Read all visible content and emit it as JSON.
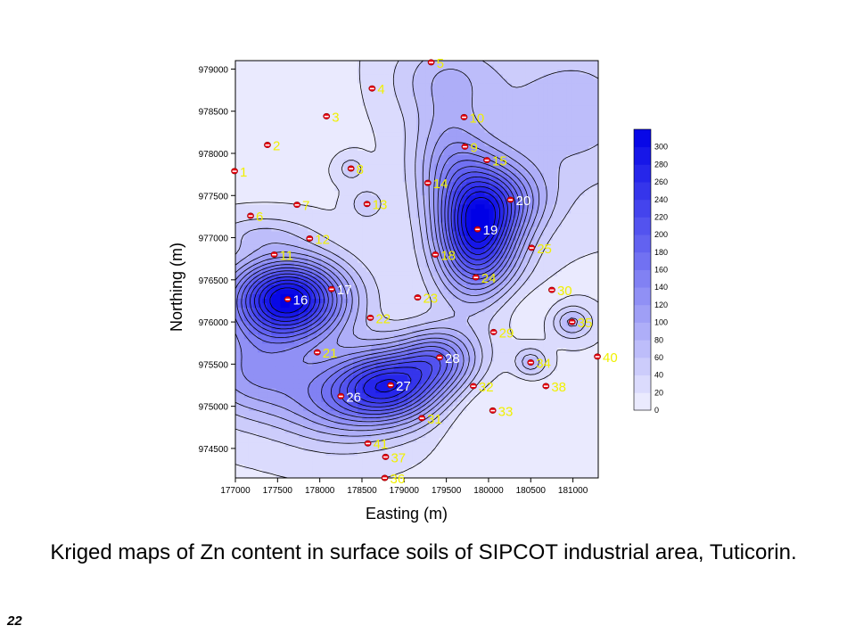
{
  "slide": {
    "caption": "Kriged maps of Zn content in surface soils of SIPCOT industrial area, Tuticorin.",
    "number": "22"
  },
  "chart_data": {
    "type": "heatmap",
    "xlabel": "Easting (m)",
    "ylabel": "Northing (m)",
    "xlim": [
      177000,
      181300
    ],
    "ylim": [
      974150,
      979100
    ],
    "x_ticks": [
      "177000",
      "177500",
      "178000",
      "178500",
      "179000",
      "179500",
      "180000",
      "180500",
      "181000"
    ],
    "y_ticks": [
      "974500",
      "975000",
      "975500",
      "976000",
      "976500",
      "977000",
      "977500",
      "978000",
      "978500",
      "979000"
    ],
    "colorbar": {
      "min": 0,
      "max": 320,
      "step": 20,
      "labels": [
        "0",
        "20",
        "40",
        "60",
        "80",
        "100",
        "120",
        "140",
        "160",
        "180",
        "200",
        "220",
        "240",
        "260",
        "280",
        "300"
      ],
      "color_low": "#f2f2ff",
      "color_high": "#0000e6"
    },
    "marker_color": "#e8000f",
    "label_color": "#f0f000",
    "high_label_color": "#ffffff",
    "samples": [
      {
        "id": "1",
        "x": 176990,
        "y": 977790
      },
      {
        "id": "2",
        "x": 177380,
        "y": 978100
      },
      {
        "id": "3",
        "x": 178080,
        "y": 978440
      },
      {
        "id": "4",
        "x": 178620,
        "y": 978770
      },
      {
        "id": "5",
        "x": 179320,
        "y": 979080
      },
      {
        "id": "6",
        "x": 177180,
        "y": 977260
      },
      {
        "id": "7",
        "x": 177730,
        "y": 977390
      },
      {
        "id": "8",
        "x": 178370,
        "y": 977820
      },
      {
        "id": "9",
        "x": 179720,
        "y": 978080
      },
      {
        "id": "10",
        "x": 179710,
        "y": 978430
      },
      {
        "id": "11",
        "x": 177460,
        "y": 976800
      },
      {
        "id": "12",
        "x": 177880,
        "y": 976990
      },
      {
        "id": "13",
        "x": 178560,
        "y": 977400
      },
      {
        "id": "14",
        "x": 179280,
        "y": 977650
      },
      {
        "id": "15",
        "x": 179980,
        "y": 977920
      },
      {
        "id": "16",
        "x": 177620,
        "y": 976270
      },
      {
        "id": "17",
        "x": 178140,
        "y": 976390
      },
      {
        "id": "18",
        "x": 179370,
        "y": 976800
      },
      {
        "id": "19",
        "x": 179870,
        "y": 977100
      },
      {
        "id": "20",
        "x": 180260,
        "y": 977450
      },
      {
        "id": "21",
        "x": 177970,
        "y": 975640
      },
      {
        "id": "22",
        "x": 178600,
        "y": 976050
      },
      {
        "id": "23",
        "x": 179160,
        "y": 976290
      },
      {
        "id": "24",
        "x": 179850,
        "y": 976530
      },
      {
        "id": "25",
        "x": 180510,
        "y": 976880
      },
      {
        "id": "26",
        "x": 178250,
        "y": 975120
      },
      {
        "id": "27",
        "x": 178840,
        "y": 975250
      },
      {
        "id": "28",
        "x": 179420,
        "y": 975580
      },
      {
        "id": "29",
        "x": 180060,
        "y": 975880
      },
      {
        "id": "30",
        "x": 180750,
        "y": 976380
      },
      {
        "id": "31",
        "x": 179210,
        "y": 974860
      },
      {
        "id": "32",
        "x": 179820,
        "y": 975240
      },
      {
        "id": "33",
        "x": 180050,
        "y": 974950
      },
      {
        "id": "34",
        "x": 180500,
        "y": 975520
      },
      {
        "id": "35",
        "x": 180990,
        "y": 976000
      },
      {
        "id": "36",
        "x": 178770,
        "y": 974150
      },
      {
        "id": "37",
        "x": 178780,
        "y": 974400
      },
      {
        "id": "38",
        "x": 180680,
        "y": 975240
      },
      {
        "id": "40",
        "x": 181290,
        "y": 975590
      },
      {
        "id": "41",
        "x": 178570,
        "y": 974560
      }
    ],
    "hotspots": [
      {
        "x": 177620,
        "y": 976270,
        "value": 305,
        "sx": 470,
        "sy": 330
      },
      {
        "x": 179870,
        "y": 977100,
        "value": 280,
        "sx": 330,
        "sy": 520
      },
      {
        "x": 178840,
        "y": 975250,
        "value": 225,
        "sx": 450,
        "sy": 300
      },
      {
        "x": 179420,
        "y": 975580,
        "value": 120,
        "sx": 320,
        "sy": 250
      },
      {
        "x": 180260,
        "y": 977450,
        "value": 80,
        "sx": 350,
        "sy": 300
      },
      {
        "x": 179500,
        "y": 977950,
        "value": 70,
        "sx": 300,
        "sy": 450
      },
      {
        "x": 177200,
        "y": 975400,
        "value": 95,
        "sx": 500,
        "sy": 380
      },
      {
        "x": 178200,
        "y": 975050,
        "value": 90,
        "sx": 500,
        "sy": 350
      },
      {
        "x": 181000,
        "y": 978500,
        "value": 55,
        "sx": 700,
        "sy": 650
      },
      {
        "x": 179500,
        "y": 978900,
        "value": 55,
        "sx": 450,
        "sy": 350
      },
      {
        "x": 180990,
        "y": 976000,
        "value": 70,
        "sx": 160,
        "sy": 130
      },
      {
        "x": 180500,
        "y": 975520,
        "value": 60,
        "sx": 130,
        "sy": 120
      },
      {
        "x": 180300,
        "y": 976200,
        "value": -20,
        "sx": 350,
        "sy": 250
      },
      {
        "x": 180100,
        "y": 974900,
        "value": -35,
        "sx": 500,
        "sy": 300
      },
      {
        "x": 177500,
        "y": 978700,
        "value": -25,
        "sx": 450,
        "sy": 450
      },
      {
        "x": 178560,
        "y": 977400,
        "value": 40,
        "sx": 140,
        "sy": 130
      },
      {
        "x": 178370,
        "y": 977820,
        "value": 35,
        "sx": 120,
        "sy": 110
      },
      {
        "x": 177300,
        "y": 977050,
        "value": 35,
        "sx": 400,
        "sy": 150
      }
    ],
    "base_value": 18
  }
}
